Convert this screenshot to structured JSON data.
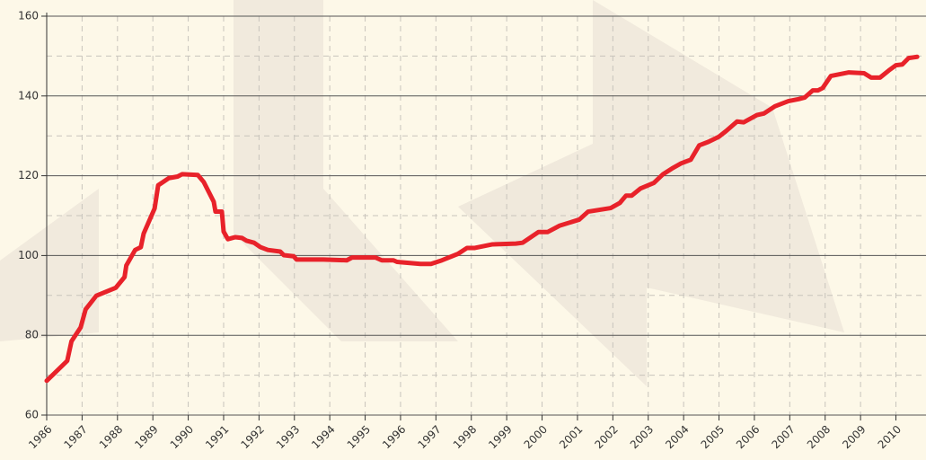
{
  "chart_data": {
    "type": "line",
    "x": [
      1986.0,
      1986.58,
      1986.7,
      1986.96,
      1987.1,
      1987.4,
      1987.95,
      1988.2,
      1988.25,
      1988.5,
      1988.66,
      1988.74,
      1989.05,
      1989.15,
      1989.45,
      1989.7,
      1989.83,
      1990.27,
      1990.44,
      1990.72,
      1990.77,
      1990.95,
      1991.0,
      1991.12,
      1991.33,
      1991.52,
      1991.65,
      1991.86,
      1992.04,
      1992.25,
      1992.6,
      1992.7,
      1992.98,
      1993.06,
      1993.82,
      1994.48,
      1994.63,
      1995.29,
      1995.47,
      1995.8,
      1995.9,
      1996.56,
      1996.86,
      1997.17,
      1997.62,
      1997.88,
      1998.1,
      1998.6,
      1999.26,
      1999.45,
      1999.9,
      2000.16,
      2000.5,
      2001.05,
      2001.3,
      2001.94,
      2002.2,
      2002.37,
      2002.53,
      2002.78,
      2003.16,
      2003.42,
      2003.67,
      2003.93,
      2004.2,
      2004.44,
      2004.7,
      2005.0,
      2005.2,
      2005.51,
      2005.7,
      2006.07,
      2006.27,
      2006.58,
      2006.96,
      2007.25,
      2007.42,
      2007.65,
      2007.8,
      2007.93,
      2008.16,
      2008.67,
      2009.1,
      2009.3,
      2009.55,
      2009.8,
      2010.0,
      2010.18,
      2010.36,
      2010.6
    ],
    "series": [
      {
        "color": "#e8222a",
        "values": [
          68.6,
          73.6,
          78.5,
          82,
          86.5,
          89.9,
          91.9,
          94.6,
          97.5,
          101.4,
          102.1,
          105.5,
          111.8,
          117.6,
          119.4,
          119.8,
          120.4,
          120.2,
          118.4,
          113.5,
          111,
          111,
          106,
          104.1,
          104.6,
          104.4,
          103.7,
          103.2,
          102.1,
          101.4,
          101,
          100.1,
          99.8,
          99,
          99,
          98.8,
          99.5,
          99.5,
          98.8,
          98.8,
          98.4,
          97.9,
          97.9,
          98.8,
          100.4,
          101.9,
          101.9,
          102.8,
          103,
          103.2,
          105.9,
          105.9,
          107.5,
          109,
          111,
          111.9,
          113.2,
          115,
          115,
          116.8,
          118.2,
          120.4,
          121.8,
          123.1,
          124,
          127.6,
          128.5,
          129.8,
          131.2,
          133.6,
          133.4,
          135.2,
          135.6,
          137.4,
          138.7,
          139.2,
          139.6,
          141.4,
          141.4,
          142,
          145,
          145.9,
          145.7,
          144.6,
          144.6,
          146.4,
          147.7,
          147.9,
          149.5,
          149.8
        ]
      }
    ],
    "xlim": [
      1986,
      2010.85
    ],
    "xticks": [
      1986,
      1987,
      1988,
      1989,
      1990,
      1991,
      1992,
      1993,
      1994,
      1995,
      1996,
      1997,
      1998,
      1999,
      2000,
      2001,
      2002,
      2003,
      2004,
      2005,
      2006,
      2007,
      2008,
      2009,
      2010
    ],
    "ylim": [
      60,
      160
    ],
    "yticks": [
      60,
      80,
      100,
      120,
      140,
      160
    ],
    "y_minor_ticks": [
      70,
      90,
      110,
      130,
      150
    ],
    "grid": true
  }
}
